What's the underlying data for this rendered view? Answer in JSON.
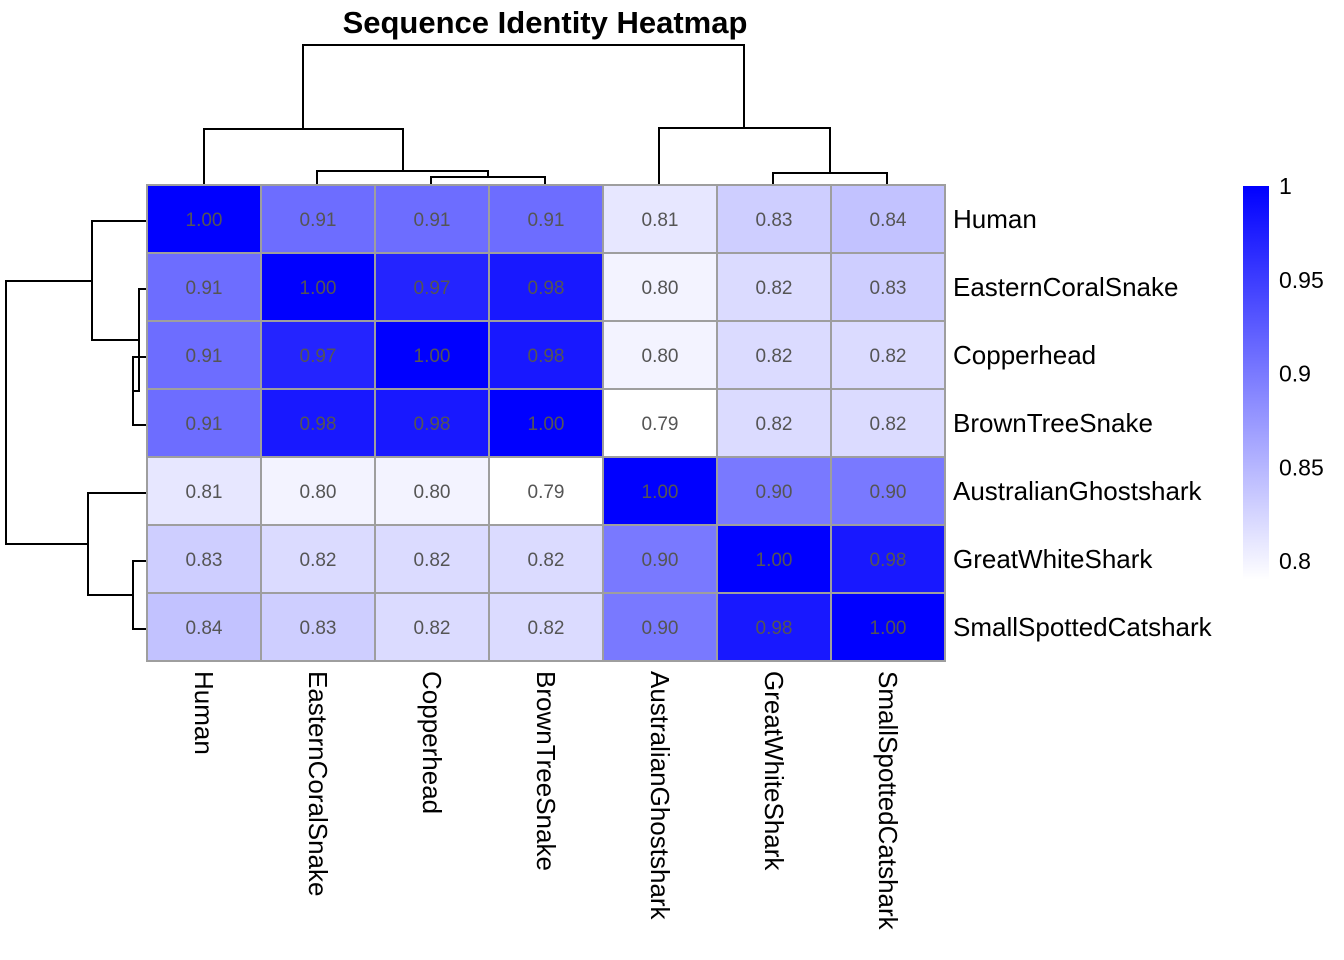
{
  "chart_data": {
    "type": "heatmap",
    "title": "Sequence Identity Heatmap",
    "rows": [
      "Human",
      "EasternCoralSnake",
      "Copperhead",
      "BrownTreeSnake",
      "AustralianGhostshark",
      "GreatWhiteShark",
      "SmallSpottedCatshark"
    ],
    "cols": [
      "Human",
      "EasternCoralSnake",
      "Copperhead",
      "BrownTreeSnake",
      "AustralianGhostshark",
      "GreatWhiteShark",
      "SmallSpottedCatshark"
    ],
    "values": [
      [
        1.0,
        0.91,
        0.91,
        0.91,
        0.81,
        0.83,
        0.84
      ],
      [
        0.91,
        1.0,
        0.97,
        0.98,
        0.8,
        0.82,
        0.83
      ],
      [
        0.91,
        0.97,
        1.0,
        0.98,
        0.8,
        0.82,
        0.82
      ],
      [
        0.91,
        0.98,
        0.98,
        1.0,
        0.79,
        0.82,
        0.82
      ],
      [
        0.81,
        0.8,
        0.8,
        0.79,
        1.0,
        0.9,
        0.9
      ],
      [
        0.83,
        0.82,
        0.82,
        0.82,
        0.9,
        1.0,
        0.98
      ],
      [
        0.84,
        0.83,
        0.82,
        0.82,
        0.9,
        0.98,
        1.0
      ]
    ],
    "value_range": [
      0.79,
      1.0
    ],
    "color_scale": {
      "low": "#ffffff",
      "high": "#0000ff"
    },
    "legend": {
      "position": "right",
      "ticks": [
        0.8,
        0.85,
        0.9,
        0.95,
        1
      ],
      "tick_labels": [
        "0.8",
        "0.85",
        "0.9",
        "0.95",
        "1"
      ]
    },
    "dendrogram": {
      "rows": "left",
      "cols": "top"
    }
  }
}
